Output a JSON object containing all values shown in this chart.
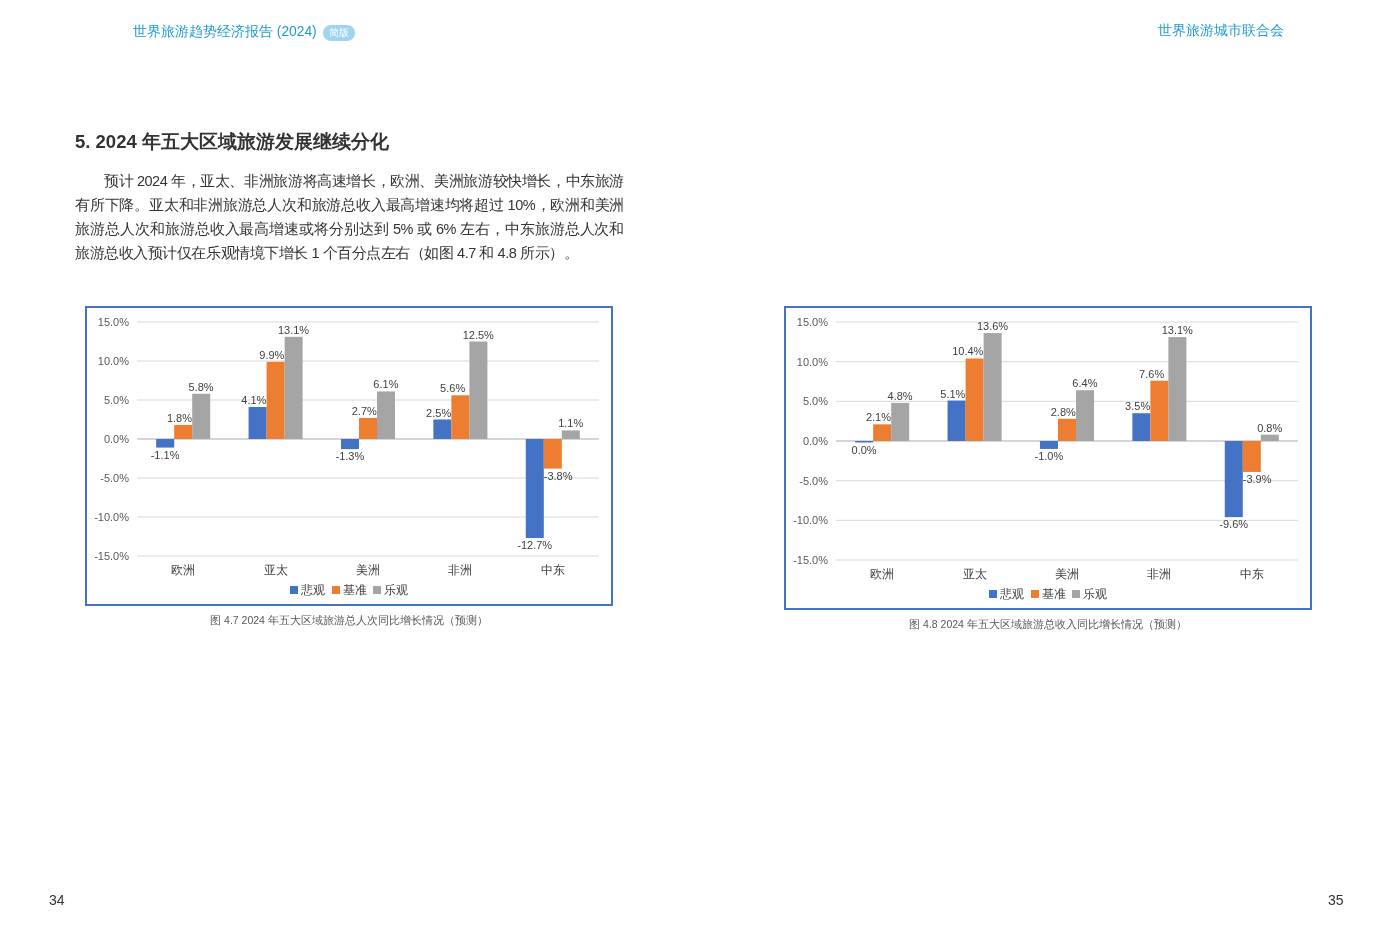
{
  "chart_data": [
    {
      "type": "bar",
      "title": "图 4.7  2024 年五大区域旅游总人次同比增长情况（预测）",
      "categories": [
        "欧洲",
        "亚太",
        "美洲",
        "非洲",
        "中东"
      ],
      "series": [
        {
          "name": "悲观",
          "color": "#4472c4",
          "values": [
            -1.1,
            4.1,
            -1.3,
            2.5,
            -12.7
          ],
          "value_labels": [
            "-1.1%",
            "4.1%",
            "-1.3%",
            "2.5%",
            "-12.7%"
          ]
        },
        {
          "name": "基准",
          "color": "#ed7d31",
          "values": [
            1.8,
            9.9,
            2.7,
            5.6,
            -3.8
          ],
          "value_labels": [
            "1.8%",
            "9.9%",
            "2.7%",
            "5.6%",
            "-3.8%"
          ]
        },
        {
          "name": "乐观",
          "color": "#a5a5a5",
          "values": [
            5.8,
            13.1,
            6.1,
            12.5,
            1.1
          ],
          "value_labels": [
            "5.8%",
            "13.1%",
            "6.1%",
            "12.5%",
            "1.1%"
          ]
        }
      ],
      "ylim": [
        -15,
        15
      ],
      "yticks": [
        {
          "value": 15,
          "label": "15.0%"
        },
        {
          "value": 10,
          "label": "10.0%"
        },
        {
          "value": 5,
          "label": "5.0%"
        },
        {
          "value": 0,
          "label": "0.0%"
        },
        {
          "value": -5,
          "label": "-5.0%"
        },
        {
          "value": -10,
          "label": "-10.0%"
        },
        {
          "value": -15,
          "label": "-15.0%"
        }
      ],
      "grid": "y",
      "legend": "bottom",
      "annotations": [
        "世界旅游趋势经济报告 (2024)",
        "简版",
        "5. 2024 年五大区域旅游发展继续分化",
        "预计 2024 年，亚太、非洲旅游将高速增长，欧洲、美洲旅游较快增长，中东旅游有所下降。亚太和非洲旅游总人次和旅游总收入最高增速均将超过 10%，欧洲和美洲旅游总人次和旅游总收入最高增速或将分别达到 5% 或 6% 左右，中东旅游总人次和旅游总收入预计仅在乐观情境下增长 1 个百分点左右（如图 4.7 和 4.8 所示）。",
        "34"
      ]
    },
    {
      "type": "bar",
      "title": "图 4.8  2024 年五大区域旅游总收入同比增长情况（预测）",
      "categories": [
        "欧洲",
        "亚太",
        "美洲",
        "非洲",
        "中东"
      ],
      "series": [
        {
          "name": "悲观",
          "color": "#4472c4",
          "values": [
            0.0,
            5.1,
            -1.0,
            3.5,
            -9.6
          ],
          "value_labels": [
            "0.0%",
            "5.1%",
            "-1.0%",
            "3.5%",
            "-9.6%"
          ]
        },
        {
          "name": "基准",
          "color": "#ed7d31",
          "values": [
            2.1,
            10.4,
            2.8,
            7.6,
            -3.9
          ],
          "value_labels": [
            "2.1%",
            "10.4%",
            "2.8%",
            "7.6%",
            "-3.9%"
          ]
        },
        {
          "name": "乐观",
          "color": "#a5a5a5",
          "values": [
            4.8,
            13.6,
            6.4,
            13.1,
            0.8
          ],
          "value_labels": [
            "4.8%",
            "13.6%",
            "6.4%",
            "13.1%",
            "0.8%"
          ]
        }
      ],
      "ylim": [
        -15,
        15
      ],
      "yticks": [
        {
          "value": 15,
          "label": "15.0%"
        },
        {
          "value": 10,
          "label": "10.0%"
        },
        {
          "value": 5,
          "label": "5.0%"
        },
        {
          "value": 0,
          "label": "0.0%"
        },
        {
          "value": -5,
          "label": "-5.0%"
        },
        {
          "value": -10,
          "label": "-10.0%"
        },
        {
          "value": -15,
          "label": "-15.0%"
        }
      ],
      "grid": "y",
      "legend": "bottom",
      "annotations": [
        "世界旅游城市联合会",
        "35"
      ]
    }
  ]
}
